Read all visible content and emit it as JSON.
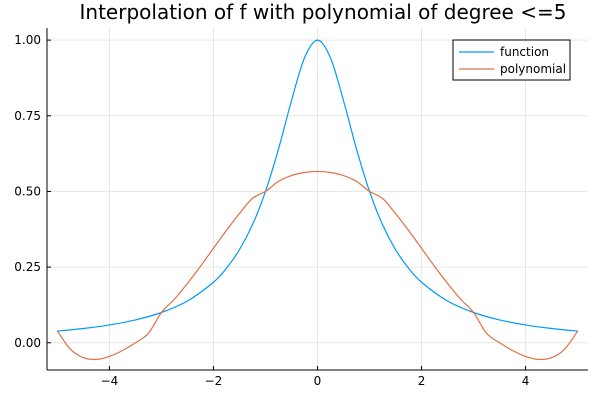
{
  "chart_data": {
    "type": "line",
    "title": "Interpolation of f with polynomial of degree <=5",
    "xlabel": "",
    "ylabel": "",
    "xlim": [
      -5.2,
      5.2
    ],
    "ylim": [
      -0.09,
      1.04
    ],
    "x_ticks": [
      -4,
      -2,
      0,
      2,
      4
    ],
    "y_ticks": [
      0.0,
      0.25,
      0.5,
      0.75,
      1.0
    ],
    "x_tick_labels": [
      "−4",
      "−2",
      "0",
      "2",
      "4"
    ],
    "y_tick_labels": [
      "0.00",
      "0.25",
      "0.50",
      "0.75",
      "1.00"
    ],
    "grid": true,
    "legend_position": "top-right",
    "series": [
      {
        "name": "function",
        "color": "#009AF9",
        "x": [
          -5.0,
          -4.5,
          -4.0,
          -3.5,
          -3.0,
          -2.5,
          -2.0,
          -1.75,
          -1.5,
          -1.25,
          -1.0,
          -0.75,
          -0.5,
          -0.25,
          0.0,
          0.25,
          0.5,
          0.75,
          1.0,
          1.25,
          1.5,
          1.75,
          2.0,
          2.5,
          3.0,
          3.5,
          4.0,
          4.5,
          5.0
        ],
        "y": [
          0.0385,
          0.0471,
          0.0588,
          0.0755,
          0.1,
          0.1379,
          0.2,
          0.2462,
          0.3077,
          0.3902,
          0.5,
          0.64,
          0.8,
          0.9412,
          1.0,
          0.9412,
          0.8,
          0.64,
          0.5,
          0.3902,
          0.3077,
          0.2462,
          0.2,
          0.1379,
          0.1,
          0.0755,
          0.0588,
          0.0471,
          0.0385
        ]
      },
      {
        "name": "polynomial",
        "color": "#E26F46",
        "x": [
          -5.0,
          -4.75,
          -4.5,
          -4.25,
          -4.0,
          -3.75,
          -3.5,
          -3.25,
          -3.0,
          -2.75,
          -2.5,
          -2.25,
          -2.0,
          -1.75,
          -1.5,
          -1.25,
          -1.0,
          -0.75,
          -0.5,
          -0.25,
          0.0,
          0.25,
          0.5,
          0.75,
          1.0,
          1.25,
          1.5,
          1.75,
          2.0,
          2.25,
          2.5,
          2.75,
          3.0,
          3.25,
          3.5,
          3.75,
          4.0,
          4.25,
          4.5,
          4.75,
          5.0
        ],
        "y": [
          0.0385,
          -0.0213,
          -0.0495,
          -0.055,
          -0.0452,
          -0.0256,
          0.0,
          0.0313,
          0.1,
          0.1443,
          0.1963,
          0.2525,
          0.3122,
          0.3713,
          0.427,
          0.477,
          0.5,
          0.5332,
          0.5526,
          0.5626,
          0.566,
          0.5626,
          0.5526,
          0.5332,
          0.5,
          0.477,
          0.427,
          0.3713,
          0.3122,
          0.2525,
          0.1963,
          0.1443,
          0.1,
          0.0313,
          0.0,
          -0.0256,
          -0.0452,
          -0.055,
          -0.0495,
          -0.0213,
          0.0385
        ]
      }
    ]
  }
}
